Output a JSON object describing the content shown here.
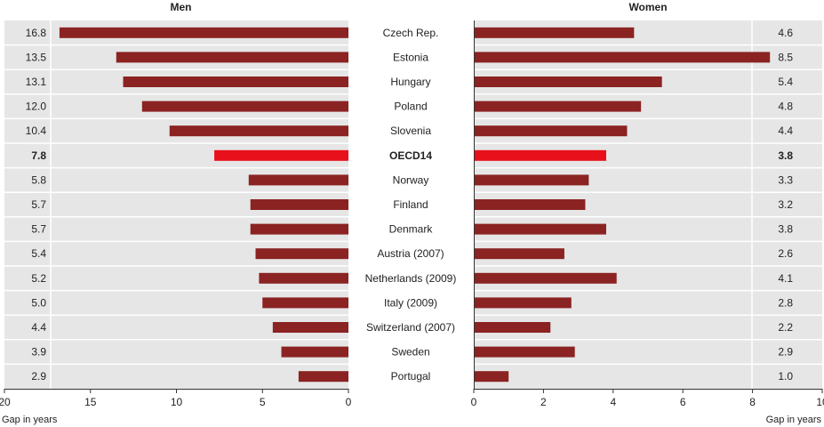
{
  "chart_data": [
    {
      "type": "bar",
      "title": "Men",
      "orientation": "horizontal-reversed",
      "categories": [
        "Czech Rep.",
        "Estonia",
        "Hungary",
        "Poland",
        "Slovenia",
        "OECD14",
        "Norway",
        "Finland",
        "Denmark",
        "Austria (2007)",
        "Netherlands (2009)",
        "Italy (2009)",
        "Switzerland (2007)",
        "Sweden",
        "Portugal"
      ],
      "values": [
        16.8,
        13.5,
        13.1,
        12.0,
        10.4,
        7.8,
        5.8,
        5.7,
        5.7,
        5.4,
        5.2,
        5.0,
        4.4,
        3.9,
        2.9
      ],
      "value_labels": [
        "16.8",
        "13.5",
        "13.1",
        "12.0",
        "10.4",
        "7.8",
        "5.8",
        "5.7",
        "5.7",
        "5.4",
        "5.2",
        "5.0",
        "4.4",
        "3.9",
        "2.9"
      ],
      "xlabel": "Gap in years",
      "xlim": [
        0,
        20
      ],
      "ticks": [
        "20",
        "15",
        "10",
        "5",
        "0"
      ],
      "tick_values": [
        20,
        15,
        10,
        5,
        0
      ],
      "highlight": "OECD14"
    },
    {
      "type": "bar",
      "title": "Women",
      "orientation": "horizontal",
      "categories": [
        "Czech Rep.",
        "Estonia",
        "Hungary",
        "Poland",
        "Slovenia",
        "OECD14",
        "Norway",
        "Finland",
        "Denmark",
        "Austria (2007)",
        "Netherlands (2009)",
        "Italy (2009)",
        "Switzerland (2007)",
        "Sweden",
        "Portugal"
      ],
      "values": [
        4.6,
        8.5,
        5.4,
        4.8,
        4.4,
        3.8,
        3.3,
        3.2,
        3.8,
        2.6,
        4.1,
        2.8,
        2.2,
        2.9,
        1.0
      ],
      "value_labels": [
        "4.6",
        "8.5",
        "5.4",
        "4.8",
        "4.4",
        "3.8",
        "3.3",
        "3.2",
        "3.8",
        "2.6",
        "4.1",
        "2.8",
        "2.2",
        "2.9",
        "1.0"
      ],
      "xlabel": "Gap in years",
      "xlim": [
        0,
        10
      ],
      "ticks": [
        "0",
        "2",
        "4",
        "6",
        "8",
        "10"
      ],
      "tick_values": [
        0,
        2,
        4,
        6,
        8,
        10
      ],
      "highlight": "OECD14"
    }
  ],
  "colors": {
    "bar": "#8b2323",
    "highlight_bar": "#e8101a",
    "panel_bg": "#e6e6e6",
    "row_line": "#ffffff",
    "axis": "#333333"
  }
}
